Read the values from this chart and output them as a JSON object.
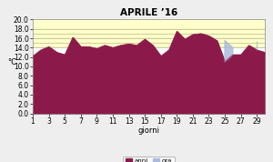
{
  "title": "APRILE ’16",
  "xlabel": "giorni",
  "ylabel": "°C",
  "ylim": [
    0,
    20
  ],
  "yticks": [
    0,
    2,
    4,
    6,
    8,
    10,
    12,
    14,
    16,
    18,
    20
  ],
  "xticks": [
    1,
    3,
    5,
    7,
    9,
    11,
    13,
    15,
    17,
    19,
    21,
    23,
    25,
    27,
    29
  ],
  "days": [
    1,
    2,
    3,
    4,
    5,
    6,
    7,
    8,
    9,
    10,
    11,
    12,
    13,
    14,
    15,
    16,
    17,
    18,
    19,
    20,
    21,
    22,
    23,
    24,
    25,
    26,
    27,
    28,
    29,
    30
  ],
  "anni": [
    12.2,
    13.5,
    14.2,
    13.0,
    12.5,
    16.2,
    14.2,
    14.2,
    13.8,
    14.5,
    14.0,
    14.5,
    14.8,
    14.5,
    15.8,
    14.5,
    12.2,
    13.5,
    17.5,
    15.8,
    16.8,
    17.0,
    16.5,
    15.5,
    11.0,
    12.5,
    12.5,
    14.5,
    13.5,
    13.0
  ],
  "ora": [
    12.2,
    13.5,
    14.2,
    13.0,
    12.5,
    16.2,
    14.2,
    14.2,
    13.8,
    14.5,
    14.0,
    14.5,
    14.8,
    14.5,
    15.8,
    14.5,
    12.2,
    13.5,
    17.5,
    15.8,
    16.8,
    17.0,
    16.5,
    15.5,
    15.5,
    14.0,
    12.5,
    14.5,
    15.5,
    13.0
  ],
  "anni_color": "#8B1A4A",
  "ora_color": "#AABBDD",
  "bg_yellow_low": 14.0,
  "bg_yellow_high": 20.0,
  "bg_yellow_color": "#FFFFCC",
  "hlines": [
    14.0,
    15.0,
    16.0,
    17.0,
    18.0
  ],
  "hline_color": "#BBBB77",
  "legend_label_anni": "anni",
  "legend_label_ora": "ora",
  "bg_color": "#EEEEEE",
  "plot_bg_color": "#FFFFFF",
  "title_fontsize": 7.5,
  "label_fontsize": 6,
  "tick_fontsize": 5.5
}
